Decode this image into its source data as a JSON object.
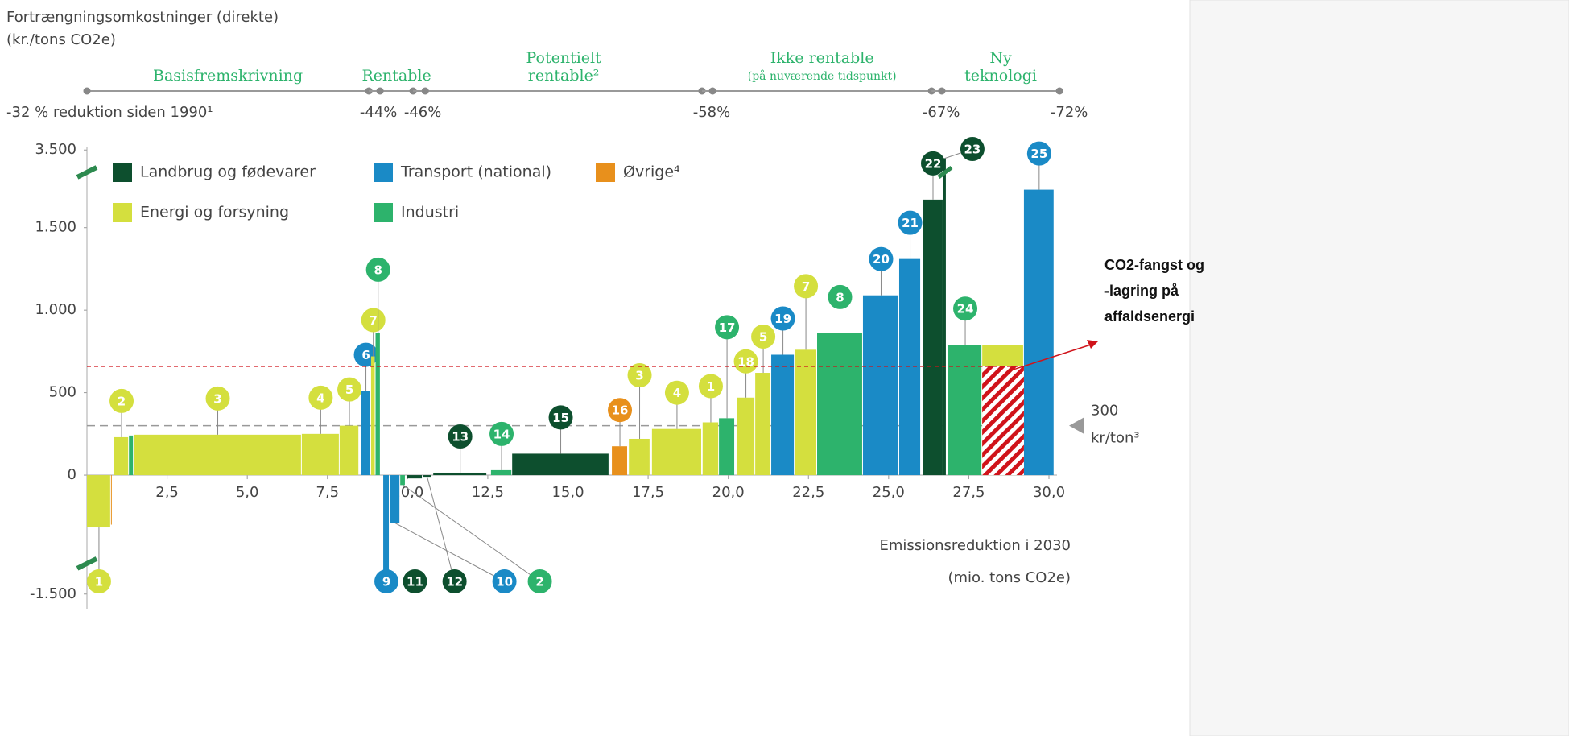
{
  "chart_data": {
    "type": "macc",
    "title": [
      "Fortrængningsomkostninger (direkte)",
      "(kr./tons CO2e)"
    ],
    "x_label": [
      "Emissionsreduktion i 2030",
      "(mio. tons CO2e)"
    ],
    "xlim": [
      0,
      30
    ],
    "xticks": [
      {
        "value": 2.5,
        "label": "2,5"
      },
      {
        "value": 5,
        "label": "5,0"
      },
      {
        "value": 7.5,
        "label": "7,5"
      },
      {
        "value": 10,
        "label": "10,0"
      },
      {
        "value": 12.5,
        "label": "12,5"
      },
      {
        "value": 15,
        "label": "15,0"
      },
      {
        "value": 17.5,
        "label": "17,5"
      },
      {
        "value": 20,
        "label": "20,0"
      },
      {
        "value": 22.5,
        "label": "22,5"
      },
      {
        "value": 25,
        "label": "25,0"
      },
      {
        "value": 27.5,
        "label": "27,5"
      },
      {
        "value": 30,
        "label": "30,0"
      }
    ],
    "ylim": [
      -1550,
      3550
    ],
    "ybreaks": [
      [
        -1400,
        -450
      ],
      [
        1750,
        3450
      ]
    ],
    "yticks": [
      {
        "value": 3500,
        "label": "3.500"
      },
      {
        "value": 1500,
        "label": "1.500"
      },
      {
        "value": 1000,
        "label": "1.000"
      },
      500,
      0,
      {
        "value": -1500,
        "label": "-1.500"
      }
    ],
    "series": [
      {
        "name": "Landbrug og fødevarer",
        "color": "#0d4f2e",
        "x_start": [
          9.99,
          10.47,
          10.8,
          13.26,
          26.06,
          26.71
        ],
        "x_end": [
          10.47,
          10.75,
          12.48,
          16.29,
          26.71,
          26.81
        ],
        "values": [
          -20,
          -10,
          15,
          130,
          1670,
          3450
        ],
        "labels": [
          "11",
          "12",
          "13",
          "15",
          "22",
          "23"
        ]
      },
      {
        "name": "Transport (national)",
        "color": "#1a8ac6",
        "x_start": [
          8.54,
          9.24,
          9.44,
          21.34,
          24.2,
          25.33,
          29.22
        ],
        "x_end": [
          8.86,
          9.44,
          9.77,
          22.07,
          25.33,
          26.01,
          30.17
        ],
        "values": [
          510,
          -1410,
          -290,
          730,
          1090,
          1310,
          1730
        ],
        "labels": [
          "6",
          "9",
          "10",
          "19",
          "20",
          "21",
          "25"
        ]
      },
      {
        "name": "Øvrige⁴",
        "color": "#e8901c",
        "x_start": [
          0.75,
          16.37
        ],
        "x_end": [
          0.8,
          16.87
        ],
        "values": [
          -300,
          175
        ],
        "labels": [
          null,
          "16"
        ]
      },
      {
        "name": "Energi og forsyning",
        "color": "#d4df3e",
        "x_start": [
          0,
          0.85,
          1.46,
          6.7,
          7.88,
          8.86,
          16.9,
          17.62,
          19.2,
          20.26,
          20.84,
          22.07,
          27.92
        ],
        "x_end": [
          0.75,
          1.31,
          6.7,
          7.88,
          8.49,
          9.0,
          17.57,
          19.18,
          19.71,
          20.84,
          21.34,
          22.77,
          29.22
        ],
        "values": [
          -317,
          230,
          245,
          250,
          300,
          720,
          220,
          280,
          320,
          470,
          620,
          760,
          790
        ],
        "labels": [
          "1",
          "2",
          "3",
          "4",
          "5",
          "7",
          "3",
          "4",
          "1",
          "18",
          "5",
          "7",
          null
        ]
      },
      {
        "name": "Industri",
        "color": "#2db36c",
        "x_start": [
          1.31,
          9.0,
          9.77,
          12.6,
          19.71,
          22.77,
          26.86
        ],
        "x_end": [
          1.46,
          9.16,
          9.94,
          13.26,
          20.21,
          24.2,
          27.92
        ],
        "values": [
          240,
          860,
          -60,
          30,
          345,
          860,
          790
        ],
        "labels": [
          null,
          "8",
          "2",
          "14",
          "17",
          "8",
          "24"
        ]
      }
    ],
    "reference": {
      "value": 300,
      "label": [
        "300",
        "kr/ton³"
      ]
    },
    "highlight": {
      "x_start": 27.92,
      "x_end": 29.22,
      "value": 660,
      "color": "#d0131a",
      "label": [
        "CO2-fangst og",
        "-lagring på",
        "affaldsenergi"
      ]
    },
    "reduction_scale": {
      "start_label": "-32 % reduktion siden 1990¹",
      "phases": [
        {
          "name": [
            "Basisfremskrivning"
          ],
          "start": 0,
          "end": 8.79,
          "end_label": "-44%"
        },
        {
          "name": [
            "Rentable"
          ],
          "start": 9.14,
          "end": 10.17,
          "end_label": "-46%"
        },
        {
          "name": [
            "Potentielt",
            "rentable²"
          ],
          "start": 10.55,
          "end": 19.18,
          "end_label": "-58%"
        },
        {
          "name": [
            "Ikke rentable",
            "(på nuværende tidspunkt)"
          ],
          "start": 19.51,
          "end": 26.34,
          "end_label": "-67%"
        },
        {
          "name": [
            "Ny",
            "teknologi"
          ],
          "start": 26.66,
          "end": 30.33,
          "end_label": "-72%"
        }
      ]
    }
  }
}
